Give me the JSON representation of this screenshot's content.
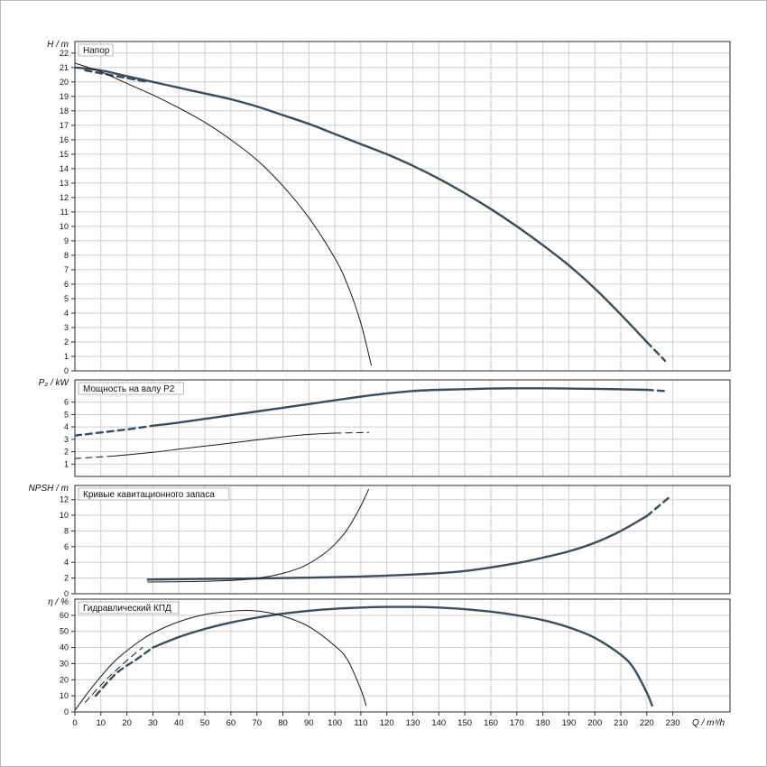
{
  "colors": {
    "main": "#3d4d57",
    "secondary": "#1a1a1a",
    "grid": "#cdcdcd",
    "axis": "#2a2a2a",
    "title_border": "#9a9a9a"
  },
  "x_axis": {
    "label": "Q / m³/h",
    "lim": [
      0,
      252
    ],
    "ticks": [
      0,
      10,
      20,
      30,
      40,
      50,
      60,
      70,
      80,
      90,
      100,
      110,
      120,
      130,
      140,
      150,
      160,
      170,
      180,
      190,
      200,
      210,
      220,
      230
    ]
  },
  "chart_data": [
    {
      "type": "line",
      "id": "head",
      "title": "Напор",
      "ylabel": "H / m",
      "ylim": [
        0,
        22.8
      ],
      "yticks": [
        0,
        1,
        2,
        3,
        4,
        5,
        6,
        7,
        8,
        9,
        10,
        11,
        12,
        13,
        14,
        15,
        16,
        17,
        18,
        19,
        20,
        21,
        22
      ],
      "series": [
        {
          "name": "head-curve-max",
          "width": "thick",
          "dashed": false,
          "points": [
            [
              0,
              21.0
            ],
            [
              10,
              20.8
            ],
            [
              20,
              20.4
            ],
            [
              30,
              20.0
            ],
            [
              40,
              19.6
            ],
            [
              50,
              19.2
            ],
            [
              60,
              18.8
            ],
            [
              70,
              18.3
            ],
            [
              80,
              17.7
            ],
            [
              90,
              17.1
            ],
            [
              100,
              16.4
            ],
            [
              110,
              15.7
            ],
            [
              120,
              15.0
            ],
            [
              130,
              14.2
            ],
            [
              140,
              13.3
            ],
            [
              150,
              12.3
            ],
            [
              160,
              11.2
            ],
            [
              170,
              10.0
            ],
            [
              180,
              8.7
            ],
            [
              190,
              7.3
            ],
            [
              200,
              5.7
            ],
            [
              210,
              3.9
            ],
            [
              220,
              2.0
            ]
          ]
        },
        {
          "name": "head-curve-max-extrapolated",
          "width": "thick",
          "dashed": true,
          "points": [
            [
              220,
              2.0
            ],
            [
              227,
              0.7
            ]
          ]
        },
        {
          "name": "head-curve-dashed-start",
          "width": "thick",
          "dashed": true,
          "points": [
            [
              4,
              20.8
            ],
            [
              28,
              20.0
            ]
          ]
        },
        {
          "name": "head-curve-min",
          "width": "thin",
          "dashed": false,
          "points": [
            [
              0,
              21.3
            ],
            [
              10,
              20.7
            ],
            [
              20,
              19.9
            ],
            [
              30,
              19.1
            ],
            [
              40,
              18.2
            ],
            [
              50,
              17.2
            ],
            [
              60,
              16.0
            ],
            [
              70,
              14.6
            ],
            [
              80,
              12.8
            ],
            [
              90,
              10.6
            ],
            [
              100,
              7.8
            ],
            [
              105,
              5.9
            ],
            [
              110,
              3.3
            ],
            [
              114,
              0.4
            ]
          ]
        }
      ]
    },
    {
      "type": "line",
      "id": "power",
      "title": "Мощность на валу P2",
      "ylabel": "P₂ / kW",
      "ylim": [
        0,
        7.8
      ],
      "yticks": [
        1,
        2,
        3,
        4,
        5,
        6
      ],
      "series": [
        {
          "name": "power-curve-max-dashed-start",
          "width": "thick",
          "dashed": true,
          "points": [
            [
              0,
              3.3
            ],
            [
              10,
              3.55
            ],
            [
              20,
              3.8
            ],
            [
              30,
              4.1
            ]
          ]
        },
        {
          "name": "power-curve-max",
          "width": "thick",
          "dashed": false,
          "points": [
            [
              30,
              4.1
            ],
            [
              40,
              4.35
            ],
            [
              50,
              4.65
            ],
            [
              60,
              4.95
            ],
            [
              70,
              5.25
            ],
            [
              80,
              5.55
            ],
            [
              90,
              5.85
            ],
            [
              100,
              6.15
            ],
            [
              110,
              6.45
            ],
            [
              120,
              6.7
            ],
            [
              130,
              6.9
            ],
            [
              140,
              7.0
            ],
            [
              150,
              7.05
            ],
            [
              160,
              7.1
            ],
            [
              170,
              7.12
            ],
            [
              180,
              7.12
            ],
            [
              190,
              7.1
            ],
            [
              200,
              7.08
            ],
            [
              210,
              7.04
            ],
            [
              220,
              7.0
            ]
          ]
        },
        {
          "name": "power-curve-max-extrapolated",
          "width": "thick",
          "dashed": true,
          "points": [
            [
              220,
              7.0
            ],
            [
              228,
              6.88
            ]
          ]
        },
        {
          "name": "power-curve-min-dashed-start",
          "width": "thin",
          "dashed": true,
          "points": [
            [
              0,
              1.45
            ],
            [
              15,
              1.65
            ]
          ]
        },
        {
          "name": "power-curve-min",
          "width": "thin",
          "dashed": false,
          "points": [
            [
              15,
              1.65
            ],
            [
              30,
              1.95
            ],
            [
              40,
              2.2
            ],
            [
              50,
              2.45
            ],
            [
              60,
              2.7
            ],
            [
              70,
              2.95
            ],
            [
              80,
              3.2
            ],
            [
              90,
              3.4
            ],
            [
              100,
              3.5
            ]
          ]
        },
        {
          "name": "power-curve-min-extrapolated",
          "width": "thin",
          "dashed": true,
          "points": [
            [
              100,
              3.5
            ],
            [
              113,
              3.55
            ]
          ]
        }
      ]
    },
    {
      "type": "line",
      "id": "npsh",
      "title": "Кривые кавитационного запаса",
      "ylabel": "NPSH / m",
      "ylim": [
        0,
        13.8
      ],
      "yticks": [
        0,
        2,
        4,
        6,
        8,
        10,
        12
      ],
      "series": [
        {
          "name": "npsh-curve-max",
          "width": "thick",
          "dashed": false,
          "points": [
            [
              28,
              1.8
            ],
            [
              50,
              1.9
            ],
            [
              70,
              1.95
            ],
            [
              90,
              2.05
            ],
            [
              110,
              2.2
            ],
            [
              130,
              2.45
            ],
            [
              150,
              2.9
            ],
            [
              170,
              3.9
            ],
            [
              180,
              4.6
            ],
            [
              190,
              5.4
            ],
            [
              200,
              6.5
            ],
            [
              210,
              8.0
            ],
            [
              220,
              9.9
            ]
          ]
        },
        {
          "name": "npsh-curve-max-extrapolated",
          "width": "thick",
          "dashed": true,
          "points": [
            [
              220,
              9.9
            ],
            [
              229,
              12.4
            ]
          ]
        },
        {
          "name": "npsh-curve-min",
          "width": "thin",
          "dashed": false,
          "points": [
            [
              28,
              1.5
            ],
            [
              45,
              1.55
            ],
            [
              60,
              1.7
            ],
            [
              70,
              1.95
            ],
            [
              80,
              2.6
            ],
            [
              88,
              3.5
            ],
            [
              95,
              4.9
            ],
            [
              100,
              6.3
            ],
            [
              105,
              8.3
            ],
            [
              110,
              11.2
            ],
            [
              113,
              13.3
            ]
          ]
        }
      ]
    },
    {
      "type": "line",
      "id": "efficiency",
      "title": "Гидравлический КПД",
      "ylabel": "η / %",
      "ylim": [
        0,
        70
      ],
      "yticks": [
        0,
        10,
        20,
        30,
        40,
        50,
        60
      ],
      "series": [
        {
          "name": "efficiency-curve-max-dashed-start",
          "width": "thick",
          "dashed": true,
          "points": [
            [
              8,
              10
            ],
            [
              16,
              24
            ],
            [
              24,
              33
            ],
            [
              30,
              40
            ]
          ]
        },
        {
          "name": "efficiency-curve-max",
          "width": "thick",
          "dashed": false,
          "points": [
            [
              30,
              40
            ],
            [
              40,
              46.5
            ],
            [
              50,
              51.5
            ],
            [
              60,
              55.5
            ],
            [
              70,
              58.5
            ],
            [
              80,
              61
            ],
            [
              90,
              62.8
            ],
            [
              100,
              64
            ],
            [
              110,
              64.8
            ],
            [
              120,
              65.2
            ],
            [
              130,
              65.2
            ],
            [
              140,
              64.8
            ],
            [
              150,
              63.8
            ],
            [
              160,
              62.3
            ],
            [
              170,
              60
            ],
            [
              180,
              57
            ],
            [
              190,
              52.5
            ],
            [
              200,
              46
            ],
            [
              210,
              35.5
            ],
            [
              215,
              27
            ],
            [
              220,
              12
            ],
            [
              222,
              4
            ]
          ]
        },
        {
          "name": "efficiency-curve-min-dashed-start",
          "width": "thin",
          "dashed": true,
          "points": [
            [
              4,
              6
            ],
            [
              12,
              20
            ],
            [
              20,
              32
            ],
            [
              26,
              40
            ]
          ]
        },
        {
          "name": "efficiency-curve-min",
          "width": "thin",
          "dashed": false,
          "points": [
            [
              0,
              1
            ],
            [
              5,
              12
            ],
            [
              10,
              22
            ],
            [
              15,
              31
            ],
            [
              20,
              38
            ],
            [
              25,
              44
            ],
            [
              30,
              49
            ],
            [
              40,
              56
            ],
            [
              50,
              60.5
            ],
            [
              60,
              62.5
            ],
            [
              66,
              63
            ],
            [
              72,
              62.3
            ],
            [
              80,
              59.5
            ],
            [
              90,
              53
            ],
            [
              100,
              41
            ],
            [
              105,
              32
            ],
            [
              110,
              14
            ],
            [
              112,
              4
            ]
          ]
        }
      ]
    }
  ]
}
